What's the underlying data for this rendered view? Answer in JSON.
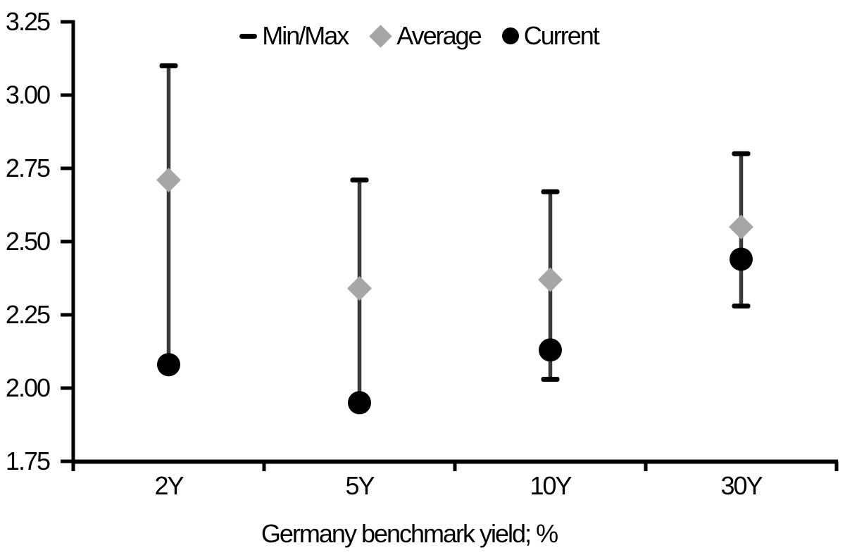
{
  "chart_data": {
    "type": "scatter",
    "subtype": "min-max-range-with-points",
    "title": "",
    "xlabel": "Germany benchmark yield; %",
    "ylabel": "",
    "categories": [
      "2Y",
      "5Y",
      "10Y",
      "30Y"
    ],
    "series": [
      {
        "name": "Min/Max",
        "role": "range",
        "min": [
          2.08,
          1.95,
          2.03,
          2.28
        ],
        "max": [
          3.1,
          2.71,
          2.67,
          2.8
        ]
      },
      {
        "name": "Average",
        "role": "point",
        "marker": "diamond",
        "values": [
          2.71,
          2.34,
          2.37,
          2.55
        ]
      },
      {
        "name": "Current",
        "role": "point",
        "marker": "circle",
        "values": [
          2.08,
          1.95,
          2.13,
          2.44
        ]
      }
    ],
    "ylim": [
      1.75,
      3.25
    ],
    "y_ticks": [
      "3.25",
      "3.00",
      "2.75",
      "2.50",
      "2.25",
      "2.00",
      "1.75"
    ],
    "grid": false,
    "legend_position": "top-center",
    "colors": {
      "range_line": "#3a3a3a",
      "cap": "#000000",
      "average_marker": "#a6a6a6",
      "current_marker": "#000000",
      "axis": "#000000",
      "text": "#000000",
      "background": "#ffffff"
    }
  },
  "legend": {
    "items": [
      {
        "label": "Min/Max",
        "marker": "dash-icon"
      },
      {
        "label": "Average",
        "marker": "diamond-icon"
      },
      {
        "label": "Current",
        "marker": "circle-icon"
      }
    ]
  }
}
